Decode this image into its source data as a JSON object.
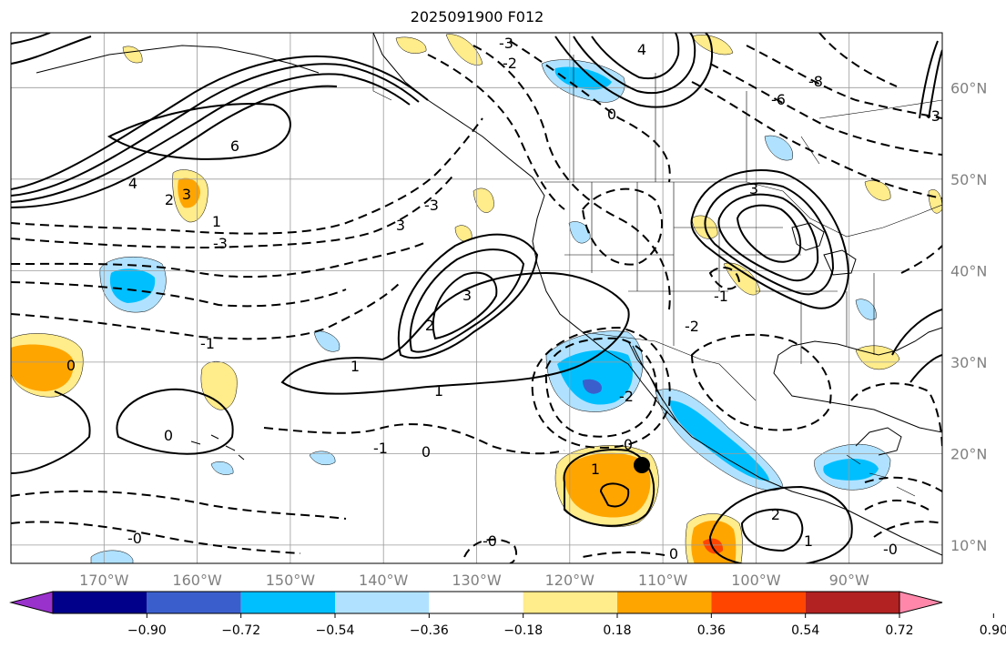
{
  "title": "2025091900 F012",
  "map": {
    "projection": "lat-lon",
    "lon_labels": [
      "170°W",
      "160°W",
      "150°W",
      "140°W",
      "130°W",
      "120°W",
      "110°W",
      "100°W",
      "90°W"
    ],
    "lat_labels": [
      "60°N",
      "50°N",
      "40°N",
      "30°N",
      "20°N",
      "10°N"
    ],
    "lon_range": [
      -180,
      -80
    ],
    "lat_range": [
      8,
      66
    ],
    "grid": true,
    "contour_labels_solid": [
      "6",
      "4",
      "3",
      "2",
      "1",
      "0",
      "3",
      "1",
      "3",
      "2",
      "1",
      "0",
      "0",
      "1",
      "0",
      "2",
      "1",
      "0",
      "4",
      "0",
      "3"
    ],
    "contour_labels_dashed": [
      "-3",
      "-2",
      "-3",
      "-1",
      "-0",
      "-0",
      "-3",
      "-2",
      "-1",
      "-6",
      "-8",
      "-2",
      "-3",
      "-1",
      "-0"
    ],
    "marker": {
      "label": "storm-center",
      "lon": -110.0,
      "lat": 18.3
    }
  },
  "colorbar": {
    "ticks": [
      "−0.90",
      "−0.72",
      "−0.54",
      "−0.36",
      "−0.18",
      "0.18",
      "0.36",
      "0.54",
      "0.72",
      "0.90"
    ],
    "colors": [
      "#9932cc",
      "#00008b",
      "#3a5fcd",
      "#00bfff",
      "#b0e2ff",
      "#ffffff",
      "#ffec8b",
      "#ffa500",
      "#ff4500",
      "#b22222",
      "#ff88aa"
    ],
    "extend": "both"
  }
}
